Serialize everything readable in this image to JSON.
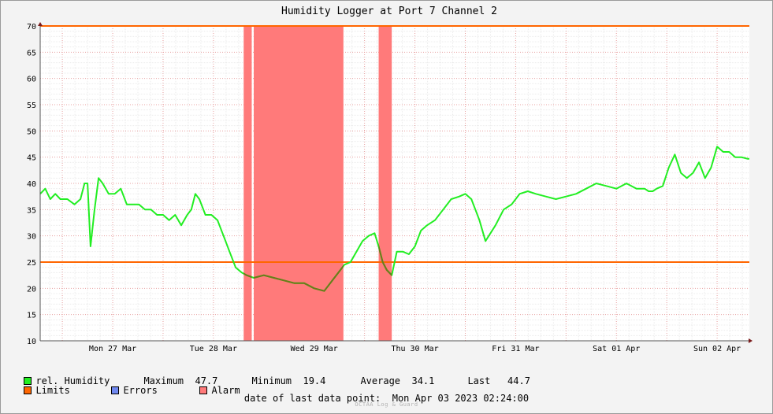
{
  "chart_data": {
    "type": "line",
    "title": "Humidity Logger at Port 7 Channel 2",
    "x_ticks": [
      "Mon 27 Mar",
      "Tue 28 Mar",
      "Wed 29 Mar",
      "Thu 30 Mar",
      "Fri 31 Mar",
      "Sat 01 Apr",
      "Sun 02 Apr"
    ],
    "xlim_days": [
      -0.22,
      6.82
    ],
    "ylim": [
      10,
      70
    ],
    "y_ticks": [
      10,
      15,
      20,
      25,
      30,
      35,
      40,
      45,
      50,
      55,
      60,
      65,
      70
    ],
    "grid": true,
    "limits": {
      "upper": 70,
      "lower": 25
    },
    "alarm_periods_days": [
      [
        1.8,
        1.88
      ],
      [
        1.9,
        2.79
      ],
      [
        3.14,
        3.27
      ]
    ],
    "series": [
      {
        "name": "rel. Humidity",
        "x_days": [
          -0.22,
          -0.17,
          -0.12,
          -0.07,
          -0.02,
          0.05,
          0.12,
          0.18,
          0.22,
          0.25,
          0.28,
          0.32,
          0.36,
          0.4,
          0.46,
          0.52,
          0.58,
          0.64,
          0.7,
          0.76,
          0.82,
          0.88,
          0.94,
          1.0,
          1.06,
          1.12,
          1.18,
          1.24,
          1.28,
          1.32,
          1.36,
          1.42,
          1.48,
          1.54,
          1.6,
          1.66,
          1.72,
          1.78,
          1.83,
          1.9,
          2.0,
          2.1,
          2.2,
          2.3,
          2.4,
          2.5,
          2.6,
          2.7,
          2.76,
          2.8,
          2.86,
          2.92,
          2.98,
          3.04,
          3.1,
          3.14,
          3.18,
          3.22,
          3.27,
          3.32,
          3.38,
          3.44,
          3.5,
          3.56,
          3.62,
          3.7,
          3.78,
          3.86,
          3.94,
          4.0,
          4.06,
          4.1,
          4.14,
          4.2,
          4.3,
          4.38,
          4.46,
          4.54,
          4.62,
          4.7,
          4.8,
          4.9,
          5.0,
          5.1,
          5.2,
          5.3,
          5.4,
          5.5,
          5.6,
          5.7,
          5.78,
          5.82,
          5.86,
          5.9,
          5.96,
          6.02,
          6.08,
          6.14,
          6.2,
          6.26,
          6.32,
          6.38,
          6.44,
          6.5,
          6.56,
          6.62,
          6.68,
          6.74,
          6.8,
          6.82
        ],
        "values": [
          38,
          39,
          37,
          38,
          37,
          37,
          36,
          37,
          40,
          40,
          28,
          35,
          41,
          40,
          38,
          38,
          39,
          36,
          36,
          36,
          35,
          35,
          34,
          34,
          33,
          34,
          32,
          34,
          35,
          38,
          37,
          34,
          34,
          33,
          30,
          27,
          24,
          23,
          22.5,
          22,
          22.5,
          22,
          21.5,
          21,
          21,
          20,
          19.5,
          22,
          23.5,
          24.5,
          25,
          27,
          29,
          30,
          30.5,
          28,
          25,
          23.5,
          22.5,
          27,
          27,
          26.5,
          28,
          31,
          32,
          33,
          35,
          37,
          37.5,
          38,
          37,
          35,
          33,
          29,
          32,
          35,
          36,
          38,
          38.5,
          38,
          37.5,
          37,
          37.5,
          38,
          39,
          40,
          39.5,
          39,
          40,
          39,
          39,
          38.5,
          38.5,
          39,
          39.5,
          43,
          45.5,
          42,
          41,
          42,
          44,
          41,
          43,
          47,
          46,
          46,
          45,
          45,
          44.7,
          44.7
        ]
      }
    ]
  },
  "legend": {
    "humidity_label": "rel. Humidity",
    "limits_label": "Limits",
    "errors_label": "Errors",
    "alarm_label": "Alarm"
  },
  "stats": {
    "max_label": "Maximum",
    "max_value": "47.7",
    "min_label": "Minimum",
    "min_value": "19.4",
    "avg_label": "Average",
    "avg_value": "34.1",
    "last_label": "Last",
    "last_value": "44.7"
  },
  "footer": {
    "date_label": "date of last data point:",
    "date_value": "Mon Apr 03 2023 02:24:00",
    "credit": "OCTAA Log & Guard"
  },
  "colors": {
    "series": "#22ee22",
    "series_in_alarm": "#6b7a1a",
    "limit": "#ff6600",
    "alarm": "#ff7a7a",
    "errors": "#7088f0",
    "grid_major": "#e8a0a0",
    "grid_minor": "#ececec",
    "plot_bg": "#ffffff"
  }
}
